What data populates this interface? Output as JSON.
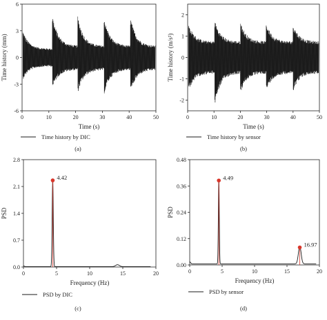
{
  "chart_data": [
    {
      "id": "a",
      "type": "line",
      "panel_label": "(a)",
      "xlabel": "Time (s)",
      "ylabel": "Time history (mm)",
      "xlim": [
        0,
        50
      ],
      "ylim": [
        -6,
        6
      ],
      "xticks": [
        0,
        10,
        20,
        30,
        40,
        50
      ],
      "yticks": [
        -6,
        -3,
        0,
        3,
        6
      ],
      "grid": false,
      "legend_position": "bottom-left",
      "series": [
        {
          "name": "Time history by DIC",
          "color": "#1a1a1a",
          "kind": "decaying-oscillation-bursts",
          "burst_starts": [
            0.3,
            11.3,
            20.8,
            30.6,
            40.5
          ],
          "peak_up": [
            3.0,
            4.8,
            4.7,
            4.6,
            4.5
          ],
          "peak_down": [
            -2.5,
            -3.5,
            -4.0,
            -4.2,
            -4.0
          ],
          "residual_up": [
            1.0,
            1.3,
            1.3,
            1.3,
            1.3
          ],
          "residual_down": [
            -1.0,
            -1.4,
            -1.4,
            -1.4,
            -1.4
          ]
        }
      ]
    },
    {
      "id": "b",
      "type": "line",
      "panel_label": "(b)",
      "xlabel": "Time (s)",
      "ylabel": "Time history (m/s²)",
      "xlim": [
        0,
        50
      ],
      "ylim": [
        -2.5,
        2.5
      ],
      "xticks": [
        0,
        10,
        20,
        30,
        40,
        50
      ],
      "yticks": [
        -2,
        -1,
        0,
        1,
        2
      ],
      "grid": false,
      "legend_position": "bottom-left",
      "series": [
        {
          "name": "Time history by sensor",
          "color": "#1a1a1a",
          "kind": "decaying-oscillation-bursts",
          "burst_starts": [
            0.3,
            10.2,
            20.0,
            29.8,
            40.0
          ],
          "peak_up": [
            1.6,
            1.8,
            1.7,
            1.65,
            1.6
          ],
          "peak_down": [
            -1.6,
            -2.3,
            -1.7,
            -1.6,
            -1.6
          ],
          "residual_up": [
            0.75,
            0.75,
            0.75,
            0.75,
            0.75
          ],
          "residual_down": [
            -0.75,
            -0.75,
            -0.75,
            -0.75,
            -0.75
          ]
        }
      ]
    },
    {
      "id": "c",
      "type": "line",
      "panel_label": "(c)",
      "xlabel": "Frequency (Hz)",
      "ylabel": "PSD",
      "xlim": [
        0,
        20
      ],
      "ylim": [
        0,
        2.8
      ],
      "xticks": [
        0,
        5,
        10,
        15,
        20
      ],
      "yticks": [
        0.0,
        0.7,
        1.4,
        2.1,
        2.8
      ],
      "ytick_labels": [
        "0.0",
        "0.7",
        "1.4",
        "2.1",
        "2.8"
      ],
      "grid": false,
      "legend_position": "bottom-left",
      "series": [
        {
          "name": "PSD by DIC",
          "color": "#1a1a1a",
          "baseline": 0.01,
          "peaks": [
            {
              "x": 4.42,
              "y": 2.26,
              "width": 0.12
            }
          ],
          "minor_bumps": [
            {
              "x": 14.2,
              "y": 0.05,
              "width": 0.4
            }
          ],
          "x_end": 19.2
        }
      ],
      "annotations": [
        {
          "x": 4.42,
          "y": 2.26,
          "text": "4.42",
          "marker_color": "#d9362b"
        }
      ]
    },
    {
      "id": "d",
      "type": "line",
      "panel_label": "(d)",
      "xlabel": "Frequency (Hz)",
      "ylabel": "PSD",
      "xlim": [
        0,
        20
      ],
      "ylim": [
        0,
        0.48
      ],
      "xticks": [
        0,
        5,
        10,
        15,
        20
      ],
      "yticks": [
        0.0,
        0.12,
        0.24,
        0.36,
        0.48
      ],
      "ytick_labels": [
        "0.00",
        "0.12",
        "0.24",
        "0.36",
        "0.48"
      ],
      "grid": false,
      "legend_position": "bottom-left",
      "series": [
        {
          "name": "PSD by sensor",
          "color": "#1a1a1a",
          "baseline": 0.005,
          "peaks": [
            {
              "x": 4.49,
              "y": 0.385,
              "width": 0.1
            },
            {
              "x": 16.97,
              "y": 0.08,
              "width": 0.3
            }
          ],
          "minor_bumps": [],
          "x_end": 19.5
        }
      ],
      "annotations": [
        {
          "x": 4.49,
          "y": 0.385,
          "text": "4.49",
          "marker_color": "#d9362b"
        },
        {
          "x": 16.97,
          "y": 0.08,
          "text": "16.97",
          "marker_color": "#d9362b"
        }
      ]
    }
  ]
}
